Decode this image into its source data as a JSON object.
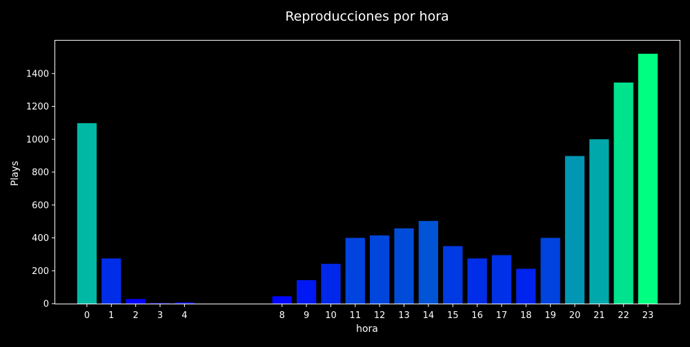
{
  "chart_data": {
    "type": "bar",
    "title": "Reproducciones por hora",
    "xlabel": "hora",
    "ylabel": "Plays",
    "x": [
      0,
      1,
      2,
      3,
      4,
      8,
      9,
      10,
      11,
      12,
      13,
      14,
      15,
      16,
      17,
      18,
      19,
      20,
      21,
      22,
      23
    ],
    "values": [
      1098,
      275,
      28,
      3,
      7,
      45,
      143,
      242,
      400,
      415,
      458,
      503,
      350,
      275,
      295,
      212,
      400,
      898,
      1000,
      1345,
      1520
    ],
    "xlim": [
      -1.3,
      24.3
    ],
    "ylim": [
      0,
      1600
    ],
    "yticks": [
      0,
      200,
      400,
      600,
      800,
      1000,
      1200,
      1400
    ],
    "grid": false,
    "colormap": "winter",
    "colors": {
      "background": "#000000",
      "text": "#ffffff",
      "axes": "#ffffff"
    }
  }
}
